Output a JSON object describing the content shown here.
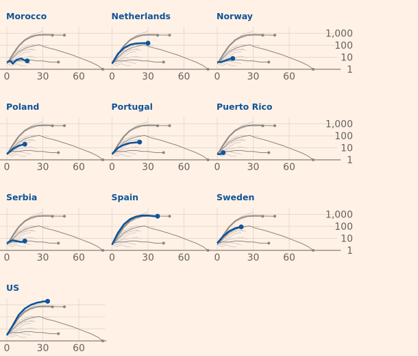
{
  "chart_data": {
    "type": "line",
    "layout": "small-multiples",
    "x_ticks": [
      "0",
      "30",
      "60"
    ],
    "xlim": [
      0,
      82
    ],
    "y_scale": "log",
    "y_ticks": [
      "1,000",
      "100",
      "10",
      "1"
    ],
    "y_tick_values": [
      1000,
      100,
      10,
      1
    ],
    "ylim": [
      1,
      3000
    ],
    "grid": true,
    "colors": {
      "highlight": "#0f5499",
      "context_dark": "#8a8480",
      "context_light": "#d3cdc8",
      "grid": "#e6d9ce",
      "axis": "#66605c",
      "background": "#fff1e5"
    },
    "context_series_dark": [
      [
        [
          0,
          3
        ],
        [
          5,
          20
        ],
        [
          10,
          100
        ],
        [
          15,
          300
        ],
        [
          20,
          550
        ],
        [
          25,
          750
        ],
        [
          30,
          820
        ],
        [
          36,
          800
        ],
        [
          40,
          720
        ],
        [
          48,
          700
        ]
      ],
      [
        [
          0,
          3
        ],
        [
          5,
          15
        ],
        [
          10,
          80
        ],
        [
          15,
          250
        ],
        [
          20,
          450
        ],
        [
          25,
          650
        ],
        [
          30,
          700
        ],
        [
          35,
          700
        ],
        [
          38,
          680
        ]
      ],
      [
        [
          0,
          3
        ],
        [
          5,
          10
        ],
        [
          10,
          30
        ],
        [
          15,
          55
        ],
        [
          20,
          80
        ],
        [
          27,
          110
        ],
        [
          32,
          70
        ],
        [
          40,
          45
        ],
        [
          48,
          25
        ],
        [
          55,
          15
        ],
        [
          62,
          8
        ],
        [
          70,
          4
        ],
        [
          76,
          2
        ],
        [
          80,
          1
        ]
      ],
      [
        [
          0,
          4
        ],
        [
          5,
          5
        ],
        [
          10,
          5
        ],
        [
          15,
          6
        ],
        [
          20,
          6
        ],
        [
          25,
          5
        ],
        [
          30,
          5
        ],
        [
          36,
          4
        ],
        [
          43,
          4
        ]
      ]
    ],
    "context_series_light": [
      [
        [
          0,
          3
        ],
        [
          8,
          60
        ],
        [
          15,
          300
        ],
        [
          22,
          800
        ],
        [
          30,
          1500
        ]
      ],
      [
        [
          0,
          3
        ],
        [
          6,
          20
        ],
        [
          12,
          60
        ],
        [
          20,
          110
        ],
        [
          28,
          100
        ],
        [
          35,
          90
        ]
      ],
      [
        [
          0,
          3
        ],
        [
          5,
          8
        ],
        [
          10,
          20
        ],
        [
          15,
          40
        ],
        [
          22,
          50
        ]
      ],
      [
        [
          0,
          3
        ],
        [
          5,
          5
        ],
        [
          10,
          12
        ],
        [
          15,
          25
        ],
        [
          20,
          30
        ]
      ],
      [
        [
          0,
          4
        ],
        [
          5,
          6
        ],
        [
          10,
          8
        ],
        [
          15,
          10
        ],
        [
          20,
          12
        ],
        [
          25,
          9
        ]
      ],
      [
        [
          0,
          3
        ],
        [
          4,
          2
        ],
        [
          8,
          3
        ],
        [
          12,
          2
        ],
        [
          16,
          2
        ]
      ],
      [
        [
          0,
          3
        ],
        [
          6,
          10
        ],
        [
          12,
          30
        ],
        [
          18,
          45
        ],
        [
          24,
          40
        ]
      ],
      [
        [
          0,
          4
        ],
        [
          4,
          3
        ],
        [
          9,
          5
        ],
        [
          14,
          4
        ],
        [
          20,
          3
        ]
      ]
    ],
    "panels": [
      {
        "name": "Morocco",
        "values": [
          [
            0,
            4
          ],
          [
            3,
            5
          ],
          [
            5,
            3
          ],
          [
            8,
            6
          ],
          [
            12,
            8
          ],
          [
            14,
            6
          ],
          [
            17,
            5
          ]
        ]
      },
      {
        "name": "Netherlands",
        "values": [
          [
            0,
            3
          ],
          [
            5,
            20
          ],
          [
            10,
            60
          ],
          [
            15,
            110
          ],
          [
            20,
            140
          ],
          [
            25,
            150
          ],
          [
            30,
            150
          ]
        ]
      },
      {
        "name": "Norway",
        "values": [
          [
            0,
            4
          ],
          [
            3,
            4
          ],
          [
            6,
            5
          ],
          [
            10,
            7
          ],
          [
            13,
            8
          ]
        ]
      },
      {
        "name": "Poland",
        "values": [
          [
            0,
            3
          ],
          [
            5,
            8
          ],
          [
            10,
            15
          ],
          [
            15,
            20
          ]
        ]
      },
      {
        "name": "Portugal",
        "values": [
          [
            0,
            3
          ],
          [
            5,
            10
          ],
          [
            10,
            18
          ],
          [
            15,
            25
          ],
          [
            23,
            30
          ]
        ]
      },
      {
        "name": "Puerto Rico",
        "values": [
          [
            0,
            3
          ],
          [
            3,
            3
          ],
          [
            5,
            4
          ]
        ]
      },
      {
        "name": "Serbia",
        "values": [
          [
            0,
            4
          ],
          [
            3,
            6
          ],
          [
            5,
            7
          ],
          [
            8,
            6
          ],
          [
            12,
            5
          ],
          [
            15,
            6
          ]
        ]
      },
      {
        "name": "Spain",
        "values": [
          [
            0,
            3
          ],
          [
            5,
            30
          ],
          [
            10,
            150
          ],
          [
            15,
            400
          ],
          [
            20,
            650
          ],
          [
            25,
            800
          ],
          [
            30,
            800
          ],
          [
            35,
            700
          ],
          [
            38,
            700
          ]
        ]
      },
      {
        "name": "Sweden",
        "values": [
          [
            0,
            4
          ],
          [
            5,
            15
          ],
          [
            10,
            40
          ],
          [
            15,
            70
          ],
          [
            20,
            90
          ]
        ]
      },
      {
        "name": "US",
        "values": [
          [
            0,
            3
          ],
          [
            5,
            20
          ],
          [
            10,
            150
          ],
          [
            15,
            500
          ],
          [
            20,
            1000
          ],
          [
            25,
            1500
          ],
          [
            30,
            1900
          ],
          [
            34,
            2000
          ]
        ]
      }
    ]
  }
}
